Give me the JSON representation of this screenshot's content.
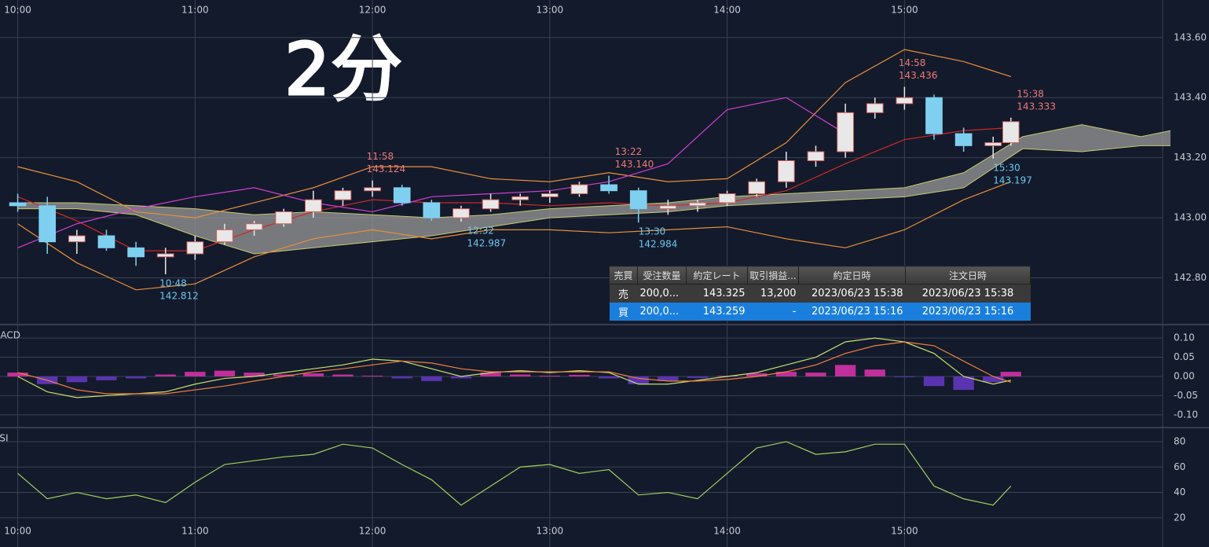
{
  "overlay_note": "2分",
  "trade_table": {
    "headers": [
      "売買",
      "受注数量",
      "約定レート",
      "取引損益...",
      "約定日時",
      "注文日時"
    ],
    "rows": [
      [
        "売",
        "200,0...",
        "143.325",
        "13,200",
        "2023/06/23 15:38",
        "2023/06/23 15:38"
      ],
      [
        "買",
        "200,0...",
        "143.259",
        "-",
        "2023/06/23 15:16",
        "2023/06/23 15:16"
      ]
    ]
  },
  "chart_data": [
    {
      "type": "candlestick",
      "xlim": [
        "09:54",
        "16:30"
      ],
      "xticks": [
        "10:00",
        "11:00",
        "12:00",
        "13:00",
        "14:00",
        "15:00"
      ],
      "xaxis_position": "top",
      "ylim": [
        142.647,
        143.725
      ],
      "yticks": [
        {
          "value": 142.8,
          "label": "142.80"
        },
        {
          "value": 143.0,
          "label": "143.00"
        },
        {
          "value": 143.2,
          "label": "143.20"
        },
        {
          "value": 143.4,
          "label": "143.40"
        },
        {
          "value": 143.6,
          "label": "143.60"
        }
      ],
      "grid": true,
      "up_color": "#e8e8e8",
      "down_color": "#7fd0f0",
      "x": [
        "10:00",
        "10:10",
        "10:20",
        "10:30",
        "10:40",
        "10:50",
        "11:00",
        "11:10",
        "11:20",
        "11:30",
        "11:40",
        "11:50",
        "12:00",
        "12:10",
        "12:20",
        "12:30",
        "12:40",
        "12:50",
        "13:00",
        "13:10",
        "13:20",
        "13:30",
        "13:40",
        "13:50",
        "14:00",
        "14:10",
        "14:20",
        "14:30",
        "14:40",
        "14:50",
        "15:00",
        "15:10",
        "15:20",
        "15:30",
        "15:36"
      ],
      "open": [
        143.05,
        143.04,
        142.92,
        142.94,
        142.9,
        142.87,
        142.88,
        142.92,
        142.96,
        142.98,
        143.02,
        143.06,
        143.09,
        143.1,
        143.05,
        143.0,
        143.03,
        143.06,
        143.07,
        143.08,
        143.11,
        143.09,
        143.03,
        143.04,
        143.05,
        143.08,
        143.12,
        143.19,
        143.22,
        143.35,
        143.38,
        143.4,
        143.28,
        143.24,
        143.25
      ],
      "high": [
        143.08,
        143.07,
        142.96,
        142.96,
        142.92,
        142.9,
        142.94,
        142.98,
        142.99,
        143.03,
        143.09,
        143.1,
        143.124,
        143.11,
        143.06,
        143.04,
        143.08,
        143.08,
        143.09,
        143.12,
        143.14,
        143.1,
        143.06,
        143.06,
        143.09,
        143.13,
        143.22,
        143.24,
        143.38,
        143.4,
        143.436,
        143.41,
        143.3,
        143.27,
        143.333
      ],
      "low": [
        143.02,
        142.88,
        142.88,
        142.89,
        142.84,
        142.812,
        142.86,
        142.91,
        142.94,
        142.97,
        143.0,
        143.04,
        143.07,
        143.04,
        142.99,
        142.987,
        143.02,
        143.04,
        143.05,
        143.07,
        143.08,
        142.984,
        143.01,
        143.02,
        143.04,
        143.07,
        143.1,
        143.17,
        143.2,
        143.33,
        143.36,
        143.26,
        143.22,
        143.197,
        143.24
      ],
      "close": [
        143.04,
        142.92,
        142.94,
        142.9,
        142.87,
        142.88,
        142.92,
        142.96,
        142.98,
        143.02,
        143.06,
        143.09,
        143.1,
        143.05,
        143.0,
        143.03,
        143.06,
        143.07,
        143.08,
        143.11,
        143.09,
        143.03,
        143.04,
        143.05,
        143.08,
        143.12,
        143.19,
        143.22,
        143.35,
        143.38,
        143.4,
        143.28,
        143.24,
        143.25,
        143.32
      ],
      "cloud": {
        "color": "#9a9a9a",
        "x": [
          "10:00",
          "10:20",
          "10:40",
          "11:00",
          "11:20",
          "11:40",
          "12:00",
          "12:20",
          "12:40",
          "13:00",
          "13:20",
          "13:40",
          "14:00",
          "14:20",
          "14:40",
          "15:00",
          "15:20",
          "15:40",
          "16:00",
          "16:20",
          "16:30"
        ],
        "span_a": [
          143.05,
          143.05,
          143.04,
          143.03,
          143.01,
          143.02,
          143.01,
          143.0,
          143.01,
          143.03,
          143.04,
          143.05,
          143.07,
          143.08,
          143.09,
          143.1,
          143.15,
          143.27,
          143.31,
          143.27,
          143.29
        ],
        "span_b": [
          143.03,
          143.03,
          143.01,
          142.94,
          142.88,
          142.9,
          142.92,
          142.94,
          142.97,
          143.0,
          143.01,
          143.02,
          143.04,
          143.05,
          143.06,
          143.07,
          143.1,
          143.23,
          143.22,
          143.24,
          143.24
        ]
      },
      "overlays": [
        {
          "color": "#e8903a",
          "x": [
            "10:00",
            "10:20",
            "10:40",
            "11:00",
            "11:20",
            "11:40",
            "12:00",
            "12:20",
            "12:40",
            "13:00",
            "13:20",
            "13:40",
            "14:00",
            "14:20",
            "14:40",
            "15:00",
            "15:20",
            "15:36"
          ],
          "values": [
            143.17,
            143.12,
            143.02,
            143.0,
            143.05,
            143.1,
            143.17,
            143.17,
            143.13,
            143.12,
            143.15,
            143.12,
            143.13,
            143.25,
            143.45,
            143.56,
            143.52,
            143.47
          ]
        },
        {
          "color": "#e8903a",
          "x": [
            "10:00",
            "10:20",
            "10:40",
            "11:00",
            "11:20",
            "11:40",
            "12:00",
            "12:20",
            "12:40",
            "13:00",
            "13:20",
            "13:40",
            "14:00",
            "14:20",
            "14:40",
            "15:00",
            "15:20",
            "15:36"
          ],
          "values": [
            142.98,
            142.85,
            142.76,
            142.78,
            142.87,
            142.93,
            142.96,
            142.93,
            142.96,
            142.96,
            142.95,
            142.96,
            142.97,
            142.93,
            142.9,
            142.96,
            143.06,
            143.12
          ]
        },
        {
          "color": "#d02828",
          "x": [
            "10:00",
            "10:20",
            "10:40",
            "11:00",
            "11:20",
            "11:40",
            "12:00",
            "12:20",
            "12:40",
            "13:00",
            "13:20",
            "13:40",
            "14:00",
            "14:20",
            "14:40",
            "15:00",
            "15:20",
            "15:36"
          ],
          "values": [
            143.07,
            142.99,
            142.89,
            142.89,
            142.96,
            143.02,
            143.06,
            143.05,
            143.05,
            143.04,
            143.05,
            143.04,
            143.05,
            143.09,
            143.18,
            143.26,
            143.29,
            143.3
          ]
        },
        {
          "color": "#d040d0",
          "x": [
            "10:00",
            "10:20",
            "10:40",
            "11:00",
            "11:20",
            "11:40",
            "12:00",
            "12:20",
            "12:40",
            "13:00",
            "13:20",
            "13:40",
            "14:00",
            "14:20",
            "14:40"
          ],
          "values": [
            142.9,
            142.98,
            143.03,
            143.07,
            143.1,
            143.05,
            143.02,
            143.07,
            143.08,
            143.09,
            143.12,
            143.18,
            143.36,
            143.4,
            143.28
          ]
        }
      ],
      "high_color": "#f07878",
      "low_color": "#6cc8f0",
      "annotations": [
        {
          "kind": "low",
          "time": "10:48",
          "price": 142.812
        },
        {
          "kind": "high",
          "time": "11:58",
          "price": 143.124
        },
        {
          "kind": "low",
          "time": "12:32",
          "price": 142.987
        },
        {
          "kind": "high",
          "time": "13:22",
          "price": {
            "value": 143.14,
            "label": "143.140"
          }
        },
        {
          "kind": "low",
          "time": "13:30",
          "price": 142.984
        },
        {
          "kind": "high",
          "time": "14:58",
          "price": 143.436
        },
        {
          "kind": "low",
          "time": "15:30",
          "price": 143.197
        },
        {
          "kind": "high",
          "time": "15:38",
          "price": 143.333
        }
      ]
    },
    {
      "type": "macd",
      "title": "MACD",
      "xlim": [
        "09:54",
        "16:30"
      ],
      "ylim": [
        -0.131,
        0.133
      ],
      "yticks": [
        {
          "value": -0.1,
          "label": "-0.10"
        },
        {
          "value": -0.05,
          "label": "-0.05"
        },
        {
          "value": 0,
          "label": "0.00"
        },
        {
          "value": 0.05,
          "label": "0.05"
        },
        {
          "value": 0.1,
          "label": "0.10"
        }
      ],
      "grid": true,
      "x": [
        "10:00",
        "10:10",
        "10:20",
        "10:30",
        "10:40",
        "10:50",
        "11:00",
        "11:10",
        "11:20",
        "11:30",
        "11:40",
        "11:50",
        "12:00",
        "12:10",
        "12:20",
        "12:30",
        "12:40",
        "12:50",
        "13:00",
        "13:10",
        "13:20",
        "13:30",
        "13:40",
        "13:50",
        "14:00",
        "14:10",
        "14:20",
        "14:30",
        "14:40",
        "14:50",
        "15:00",
        "15:10",
        "15:20",
        "15:30",
        "15:36"
      ],
      "histogram": {
        "positive_color": "#c0309a",
        "negative_color": "#5a34b0",
        "values": [
          0.01,
          -0.02,
          -0.015,
          -0.01,
          -0.005,
          0.005,
          0.012,
          0.015,
          0.01,
          0.005,
          0.008,
          0.005,
          0.002,
          -0.005,
          -0.012,
          -0.005,
          0.01,
          0.005,
          0.002,
          0.004,
          -0.005,
          -0.02,
          -0.012,
          -0.004,
          0.002,
          0.008,
          0.012,
          0.01,
          0.03,
          0.018,
          -0.002,
          -0.025,
          -0.035,
          -0.015,
          0.012
        ]
      },
      "series": [
        {
          "color": "#c8e070",
          "values": [
            0.0,
            -0.04,
            -0.055,
            -0.05,
            -0.045,
            -0.04,
            -0.02,
            -0.005,
            0.0,
            0.01,
            0.02,
            0.03,
            0.045,
            0.04,
            0.02,
            0.0,
            0.01,
            0.015,
            0.01,
            0.015,
            0.01,
            -0.02,
            -0.02,
            -0.01,
            0.0,
            0.01,
            0.03,
            0.05,
            0.09,
            0.1,
            0.09,
            0.06,
            0.0,
            -0.02,
            -0.01
          ]
        },
        {
          "color": "#f08040",
          "values": [
            0.01,
            -0.01,
            -0.035,
            -0.045,
            -0.045,
            -0.045,
            -0.035,
            -0.025,
            -0.012,
            0.0,
            0.012,
            0.02,
            0.03,
            0.04,
            0.035,
            0.02,
            0.012,
            0.012,
            0.012,
            0.012,
            0.012,
            -0.005,
            -0.012,
            -0.012,
            -0.008,
            0.0,
            0.012,
            0.03,
            0.06,
            0.08,
            0.09,
            0.08,
            0.04,
            0.0,
            -0.015
          ]
        }
      ]
    },
    {
      "type": "line",
      "title": "RSI",
      "xlim": [
        "09:54",
        "16:30"
      ],
      "xticks": [
        "10:00",
        "11:00",
        "12:00",
        "13:00",
        "14:00",
        "15:00"
      ],
      "xaxis_position": "bottom",
      "ylim": [
        -3,
        90.5
      ],
      "yticks": [
        20,
        40,
        60,
        80
      ],
      "grid": true,
      "x": [
        "10:00",
        "10:10",
        "10:20",
        "10:30",
        "10:40",
        "10:50",
        "11:00",
        "11:10",
        "11:20",
        "11:30",
        "11:40",
        "11:50",
        "12:00",
        "12:10",
        "12:20",
        "12:30",
        "12:40",
        "12:50",
        "13:00",
        "13:10",
        "13:20",
        "13:30",
        "13:40",
        "13:50",
        "14:00",
        "14:10",
        "14:20",
        "14:30",
        "14:40",
        "14:50",
        "15:00",
        "15:10",
        "15:20",
        "15:30",
        "15:36"
      ],
      "series": [
        {
          "color": "#a0d060",
          "values": [
            55,
            35,
            40,
            35,
            38,
            32,
            48,
            62,
            65,
            68,
            70,
            78,
            75,
            62,
            50,
            30,
            45,
            60,
            62,
            55,
            58,
            38,
            40,
            35,
            55,
            75,
            80,
            70,
            72,
            78,
            78,
            45,
            35,
            30,
            45
          ]
        }
      ]
    }
  ]
}
